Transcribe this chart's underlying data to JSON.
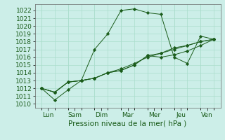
{
  "xlabel": "Pression niveau de la mer( hPa )",
  "background_color": "#cceee8",
  "grid_color": "#aaddcc",
  "line_color": "#1a5c1a",
  "ylim": [
    1009.5,
    1022.8
  ],
  "yticks": [
    1010,
    1011,
    1012,
    1013,
    1014,
    1015,
    1016,
    1017,
    1018,
    1019,
    1020,
    1021,
    1022
  ],
  "x_labels": [
    "Lun",
    "Sam",
    "Dim",
    "Mar",
    "Mer",
    "Jeu",
    "Ven"
  ],
  "x_tick_positions": [
    0,
    1,
    2,
    3,
    4,
    5,
    6
  ],
  "series": [
    {
      "x": [
        0.0,
        0.5,
        1.0,
        1.5,
        2.0,
        2.5,
        3.0,
        3.5,
        4.0,
        4.5,
        5.0,
        5.5,
        6.0,
        6.5
      ],
      "y": [
        1012.0,
        1010.5,
        1011.8,
        1013.0,
        1017.0,
        1019.0,
        1022.0,
        1022.2,
        1021.7,
        1021.5,
        1016.0,
        1015.2,
        1018.7,
        1018.3
      ]
    },
    {
      "x": [
        0.0,
        0.5,
        1.0,
        1.5,
        2.0,
        2.5,
        3.0,
        3.5,
        4.0,
        4.5,
        5.0,
        5.5,
        6.0,
        6.5
      ],
      "y": [
        1012.0,
        1011.5,
        1012.8,
        1013.0,
        1013.3,
        1014.0,
        1014.3,
        1015.0,
        1016.2,
        1016.0,
        1016.3,
        1016.8,
        1017.5,
        1018.3
      ]
    },
    {
      "x": [
        0.0,
        0.5,
        1.0,
        1.5,
        2.0,
        2.5,
        3.0,
        3.5,
        4.0,
        4.5,
        5.0,
        5.5,
        6.0,
        6.5
      ],
      "y": [
        1012.0,
        1011.5,
        1012.8,
        1013.0,
        1013.3,
        1014.0,
        1014.3,
        1015.0,
        1016.2,
        1016.5,
        1017.0,
        1017.5,
        1018.0,
        1018.3
      ]
    },
    {
      "x": [
        0.0,
        0.5,
        1.0,
        1.5,
        2.0,
        2.5,
        3.0,
        3.5,
        4.0,
        4.5,
        5.0,
        5.5,
        6.0,
        6.5
      ],
      "y": [
        1012.0,
        1011.5,
        1012.8,
        1013.0,
        1013.3,
        1014.0,
        1014.5,
        1015.2,
        1016.0,
        1016.5,
        1017.2,
        1017.5,
        1018.0,
        1018.3
      ]
    }
  ],
  "fontsize_tick": 6.5,
  "fontsize_xlabel": 7.5
}
